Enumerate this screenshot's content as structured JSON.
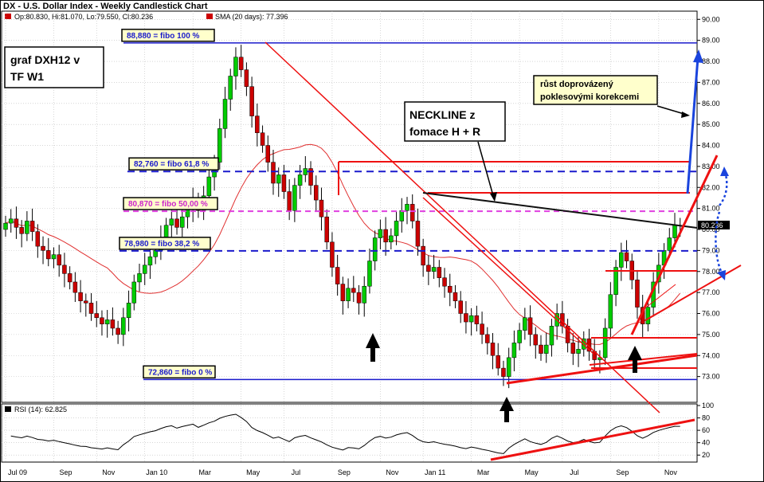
{
  "header": {
    "title": "DX - U.S. Dollar Index - Weekly Candlestick Chart",
    "ohlc": "Op:80.830, Hi:81.070, Lo:79.550, Cl:80.236",
    "sma": "SMA (20 days): 77.396",
    "rsi": "RSI (14): 62.825",
    "last_price": "80.236"
  },
  "colors": {
    "up": "#00cc00",
    "down": "#cc0000",
    "sma": "#e03030",
    "fibo_line": "#1a1acc",
    "fibo_mid": "#e040e0",
    "trend": "#ee1111",
    "neckline": "#111111",
    "arrow_blue": "#1a44dd",
    "label_bg": "#ffffcc"
  },
  "annotations": {
    "graf": [
      "graf DXH12 v",
      "TF W1"
    ],
    "neckline": [
      "NECKLINE z",
      "fomace H + R"
    ],
    "rust": [
      "růst doprovázený",
      "poklesovými korekcemi"
    ]
  },
  "chart_data": {
    "type": "candlestick",
    "title": "DX - U.S. Dollar Index - Weekly Candlestick Chart",
    "y_ticks": [
      73,
      74,
      75,
      76,
      77,
      78,
      79,
      80,
      81,
      82,
      83,
      84,
      85,
      86,
      87,
      88,
      89,
      90
    ],
    "ylim": [
      72,
      90.2
    ],
    "x_ticks": [
      {
        "label": "Jul 09",
        "week": 0
      },
      {
        "label": "Sep",
        "week": 9
      },
      {
        "label": "Nov",
        "week": 17
      },
      {
        "label": "Jan 10",
        "week": 26
      },
      {
        "label": "Mar",
        "week": 35
      },
      {
        "label": "May",
        "week": 44
      },
      {
        "label": "Jul",
        "week": 52
      },
      {
        "label": "Sep",
        "week": 61
      },
      {
        "label": "Nov",
        "week": 70
      },
      {
        "label": "Jan 11",
        "week": 78
      },
      {
        "label": "Mar",
        "week": 87
      },
      {
        "label": "May",
        "week": 96
      },
      {
        "label": "Jul",
        "week": 104
      },
      {
        "label": "Sep",
        "week": 113
      },
      {
        "label": "Nov",
        "week": 122
      }
    ],
    "closes": [
      80.3,
      80.5,
      80.1,
      79.8,
      80.4,
      79.9,
      79.2,
      79.0,
      78.6,
      78.8,
      78.3,
      77.9,
      77.5,
      77.0,
      76.6,
      76.5,
      76.0,
      75.8,
      75.5,
      75.7,
      75.3,
      75.0,
      75.8,
      76.5,
      77.5,
      77.9,
      78.3,
      78.7,
      79.0,
      79.6,
      80.2,
      80.5,
      80.1,
      80.6,
      81.0,
      81.4,
      80.9,
      81.6,
      82.5,
      83.2,
      84.8,
      86.2,
      87.3,
      88.2,
      87.6,
      86.8,
      85.4,
      84.6,
      84.0,
      83.2,
      82.2,
      82.6,
      81.8,
      80.9,
      82.1,
      82.6,
      82.9,
      82.1,
      81.4,
      80.6,
      79.4,
      78.2,
      77.4,
      76.6,
      77.2,
      77.0,
      76.5,
      77.3,
      78.5,
      79.6,
      80.0,
      79.4,
      79.7,
      80.4,
      80.9,
      81.2,
      80.4,
      79.2,
      78.3,
      78.0,
      78.2,
      77.7,
      77.3,
      77.0,
      76.6,
      76.0,
      75.6,
      75.9,
      75.5,
      75.0,
      74.6,
      74.0,
      73.4,
      73.0,
      73.9,
      74.6,
      75.2,
      75.8,
      75.0,
      74.5,
      74.1,
      74.5,
      75.4,
      76.0,
      75.4,
      74.6,
      74.1,
      74.3,
      74.8,
      74.2,
      73.8,
      73.9,
      75.3,
      76.9,
      78.2,
      78.9,
      78.5,
      77.6,
      76.3,
      75.5,
      76.3,
      77.5,
      78.3,
      79.0,
      79.6,
      80.2,
      80.2
    ],
    "fib_levels": [
      {
        "label": "88,880 = fibo 100 %",
        "value": 88.88
      },
      {
        "label": "82,760 = fibo 61,8 %",
        "value": 82.76
      },
      {
        "label": "80,870 = fibo 50,00 %",
        "value": 80.87
      },
      {
        "label": "78,980 = fibo 38,2 %",
        "value": 78.98
      },
      {
        "label": "72,860 = fibo 0 %",
        "value": 72.86
      }
    ],
    "resistance_levels": [
      83.2,
      81.75,
      78.1,
      75.0,
      73.5
    ],
    "rsi_ticks": [
      20,
      40,
      60,
      80,
      100
    ],
    "rsi_ylim": [
      10,
      100
    ],
    "rsi_last": 62.825
  }
}
